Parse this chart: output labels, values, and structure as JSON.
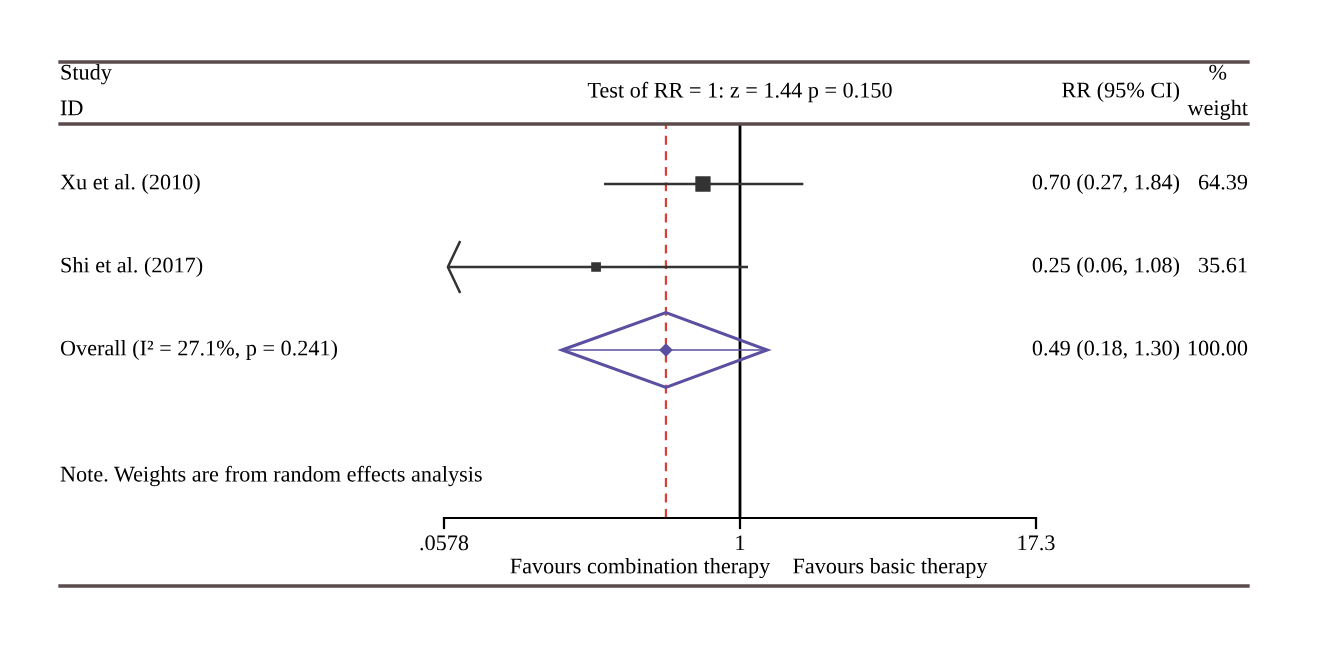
{
  "chart_data": {
    "type": "scatter",
    "title": "Test of RR = 1: z = 1.44 p = 0.150",
    "categories": [
      "Xu et al. (2010)",
      "Shi et al. (2017)",
      "Overall (I² = 27.1%, p = 0.241)"
    ],
    "series": [
      {
        "color": "#333333",
        "marker": "square",
        "values": [
          0.7,
          0.25,
          null
        ],
        "errors": [
          [
            0.27,
            1.84
          ],
          [
            0.06,
            1.08
          ],
          null
        ]
      },
      {
        "color": "#5a4fa0",
        "marker": "diamond",
        "values": [
          null,
          null,
          0.49
        ],
        "errors": [
          null,
          null,
          [
            0.18,
            1.3
          ]
        ]
      }
    ],
    "orientation": "horizontal",
    "log": "x",
    "xlim": [
      0.0578,
      17.3
    ],
    "xticks": [
      {
        "value": 0.0578,
        "label": ".0578"
      },
      1,
      17.3
    ],
    "ref_lines": [
      {
        "axis": "x",
        "value": 1,
        "color": "#000000",
        "line_style": "solid"
      },
      {
        "axis": "x",
        "value": 0.49,
        "color": "#d9403a",
        "line_style": "dashed"
      }
    ],
    "annotations": [
      "Study\nID",
      "RR (95% CI)",
      "%\nweight",
      "Note. Weights are from random effects analysis",
      "Favours combination therapy",
      "Favours basic therapy",
      "64.39",
      "35.61",
      "100.00",
      "0.70 (0.27, 1.84)",
      "0.25 (0.06, 1.08)",
      "0.49 (0.18, 1.30)"
    ]
  }
}
